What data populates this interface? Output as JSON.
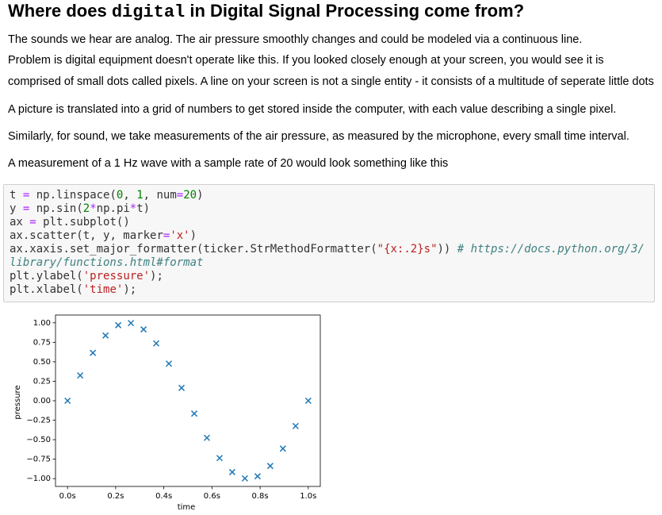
{
  "heading": {
    "parts": [
      "Where does ",
      "digital",
      " in Digital Signal Processing come from?"
    ]
  },
  "paragraphs": [
    "The sounds we hear are analog. The air pressure smoothly changes and could be modeled via a continuous line.",
    "Problem is digital equipment doesn't operate like this. If you looked closely enough at your screen, you would see it is comprised of small dots called pixels. A line on your screen is not a single entity - it consists of a multitude of seperate little dots",
    "A picture is translated into a grid of numbers to get stored inside the computer, with each value describing a single pixel.",
    "Similarly, for sound, we take measurements of the air pressure, as measured by the microphone, every small time interval.",
    "A measurement of a 1 Hz wave with a sample rate of 20 would look something like this"
  ],
  "code": [
    [
      "t",
      " ",
      "=",
      " np",
      ".",
      "linspace(",
      "0",
      ", ",
      "1",
      ", num",
      "=",
      "20",
      ")"
    ],
    [
      "y",
      " ",
      "=",
      " np",
      ".",
      "sin(",
      "2",
      "*",
      "np",
      ".",
      "pi",
      "*",
      "t)"
    ],
    [
      "ax",
      " ",
      "=",
      " plt",
      ".",
      "subplot()"
    ],
    [
      "ax",
      ".",
      "scatter(t, y, marker",
      "=",
      "'x'",
      ")"
    ],
    [
      "ax",
      ".",
      "xaxis",
      ".",
      "set_major_formatter(ticker",
      ".",
      "StrMethodFormatter(",
      "\"{x:.2}s\"",
      ")) ",
      "# https://docs.python.org/3/library/functions.html#format"
    ],
    [
      "plt",
      ".",
      "ylabel(",
      "'pressure'",
      ");"
    ],
    [
      "plt",
      ".",
      "xlabel(",
      "'time'",
      ");"
    ]
  ],
  "chart_data": {
    "type": "scatter",
    "xlabel": "time",
    "ylabel": "pressure",
    "color": "#1f77b4",
    "marker": "x",
    "x": [
      0,
      0.0526,
      0.1053,
      0.1579,
      0.2105,
      0.2632,
      0.3158,
      0.3684,
      0.4211,
      0.4737,
      0.5263,
      0.5789,
      0.6316,
      0.6842,
      0.7368,
      0.7895,
      0.8421,
      0.8947,
      0.9474,
      1
    ],
    "values": [
      0,
      0.3247,
      0.6142,
      0.8372,
      0.9694,
      0.9966,
      0.9158,
      0.7357,
      0.4759,
      0.1646,
      -0.1646,
      -0.4759,
      -0.7357,
      -0.9158,
      -0.9966,
      -0.9694,
      -0.8372,
      -0.6142,
      -0.3247,
      0
    ],
    "xlim": [
      -0.05,
      1.05
    ],
    "ylim": [
      -1.1,
      1.1
    ],
    "xticks": [
      {
        "value": 0,
        "label": "0.0s"
      },
      {
        "value": 0.2,
        "label": "0.2s"
      },
      {
        "value": 0.4,
        "label": "0.4s"
      },
      {
        "value": 0.6,
        "label": "0.6s"
      },
      {
        "value": 0.8,
        "label": "0.8s"
      },
      {
        "value": 1,
        "label": "1.0s"
      }
    ],
    "yticks": [
      {
        "value": 1,
        "label": "1.00"
      },
      {
        "value": 0.75,
        "label": "0.75"
      },
      {
        "value": 0.5,
        "label": "0.50"
      },
      {
        "value": 0.25,
        "label": "0.25"
      },
      {
        "value": 0,
        "label": "0.00"
      },
      {
        "value": -0.25,
        "label": "−0.25"
      },
      {
        "value": -0.5,
        "label": "−0.50"
      },
      {
        "value": -0.75,
        "label": "−0.75"
      },
      {
        "value": -1,
        "label": "−1.00"
      }
    ]
  }
}
